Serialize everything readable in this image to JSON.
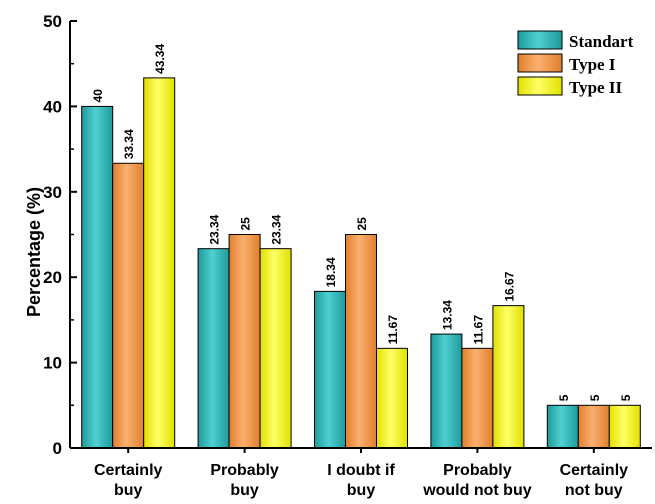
{
  "chart_data": {
    "type": "bar",
    "title": "",
    "xlabel": "",
    "ylabel": "Percentage (%)",
    "ylim": [
      0,
      50
    ],
    "yticks": [
      0,
      10,
      20,
      30,
      40,
      50
    ],
    "categories": [
      [
        "Certainly",
        "buy"
      ],
      [
        "Probably",
        "buy"
      ],
      [
        "I doubt if",
        "buy"
      ],
      [
        "Probably",
        "would not buy"
      ],
      [
        "Certainly",
        "not buy"
      ]
    ],
    "series": [
      {
        "name": "Standart",
        "color": "#2ab3b5",
        "values": [
          40,
          23.34,
          18.34,
          13.34,
          5
        ],
        "labels": [
          "40",
          "23.34",
          "18.34",
          "13.34",
          "5"
        ]
      },
      {
        "name": "Type I",
        "color": "#f59a4a",
        "values": [
          33.34,
          25,
          25,
          11.67,
          5
        ],
        "labels": [
          "33.34",
          "25",
          "25",
          "11.67",
          "5"
        ]
      },
      {
        "name": "Type II",
        "color": "#f2f21a",
        "values": [
          43.34,
          23.34,
          11.67,
          16.67,
          5
        ],
        "labels": [
          "43.34",
          "23.34",
          "11.67",
          "16.67",
          "5"
        ]
      }
    ],
    "legend_position": "top-right",
    "grid": false
  }
}
